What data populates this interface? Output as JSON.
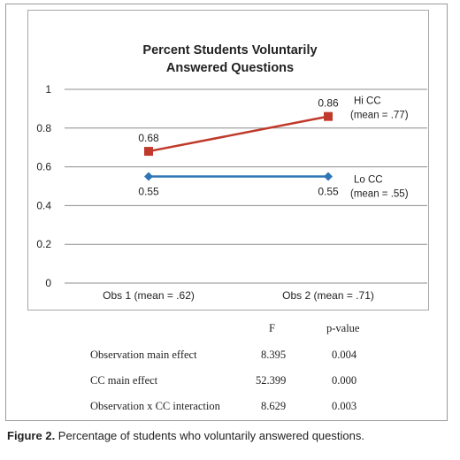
{
  "chart_data": {
    "type": "line",
    "title": [
      "Percent Students Voluntarily",
      "Answered Questions"
    ],
    "categories": [
      "Obs 1 (mean = .62)",
      "Obs 2 (mean = .71)"
    ],
    "ylim": [
      0,
      1
    ],
    "yticks": [
      "0",
      "0.2",
      "0.4",
      "0.6",
      "0.8",
      "1"
    ],
    "grid": true,
    "series": [
      {
        "name": "Hi CC",
        "subname": "(mean = .77)",
        "values": [
          0.68,
          0.86
        ],
        "value_labels": [
          "0.68",
          "0.86"
        ],
        "color": "#c0392b",
        "marker": "square"
      },
      {
        "name": "Lo CC",
        "subname": "(mean = .55)",
        "values": [
          0.55,
          0.55
        ],
        "value_labels": [
          "0.55",
          "0.55"
        ],
        "color": "#2e75b6",
        "marker": "diamond"
      }
    ]
  },
  "stats_table": {
    "headers": [
      "F",
      "p-value"
    ],
    "rows": [
      {
        "effect": "Observation main effect",
        "F": "8.395",
        "p": "0.004"
      },
      {
        "effect": "CC main effect",
        "F": "52.399",
        "p": "0.000"
      },
      {
        "effect": "Observation x CC interaction",
        "F": "8.629",
        "p": "0.003"
      }
    ]
  },
  "caption": {
    "label": "Figure 2.",
    "text": " Percentage of students who voluntarily answered questions."
  }
}
